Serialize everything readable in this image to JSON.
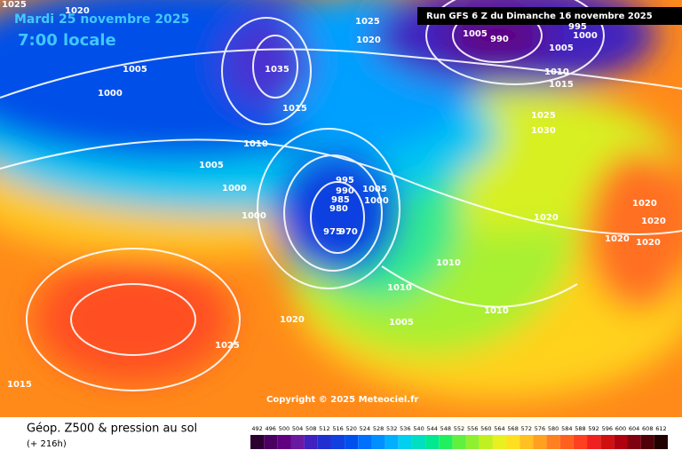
{
  "header": {
    "date": "Mardi 25 novembre 2025",
    "time": "7:00 locale",
    "run": "Run GFS 6 Z du Dimanche 16 novembre 2025"
  },
  "copyright": "Copyright © 2025 Meteociel.fr",
  "footer": {
    "title": "Géop. Z500 & pression au sol",
    "lead": "(+ 216h)"
  },
  "isobar_labels": [
    "1025",
    "1020",
    "1025",
    "1020",
    "1005",
    "1000",
    "1035",
    "1015",
    "1010",
    "1005",
    "1000",
    "1000",
    "995",
    "990",
    "985",
    "980",
    "975",
    "970",
    "1005",
    "1000",
    "1005",
    "990",
    "995",
    "1000",
    "1005",
    "1010",
    "1015",
    "1025",
    "1030",
    "1020",
    "1020",
    "1020",
    "1020",
    "1020",
    "1010",
    "1010",
    "1005",
    "1010",
    "1020",
    "1025",
    "1015"
  ],
  "scale": {
    "labels": [
      492,
      496,
      500,
      504,
      508,
      512,
      516,
      520,
      524,
      528,
      532,
      536,
      540,
      544,
      548,
      552,
      556,
      560,
      564,
      568,
      572,
      576,
      580,
      584,
      588,
      592,
      596,
      600,
      604,
      608,
      612
    ],
    "colors": [
      "#2b0030",
      "#4a0060",
      "#600080",
      "#6a1aa0",
      "#4020c0",
      "#2030d0",
      "#1040e0",
      "#0050f0",
      "#0070ff",
      "#0090ff",
      "#00b0ff",
      "#00d0f0",
      "#00e0c0",
      "#00e890",
      "#20f060",
      "#60f040",
      "#90f030",
      "#c0f020",
      "#e8f020",
      "#ffe020",
      "#ffc020",
      "#ffa020",
      "#ff8020",
      "#ff6020",
      "#ff4020",
      "#f02020",
      "#d01010",
      "#b00010",
      "#800010",
      "#500008",
      "#200000"
    ]
  }
}
